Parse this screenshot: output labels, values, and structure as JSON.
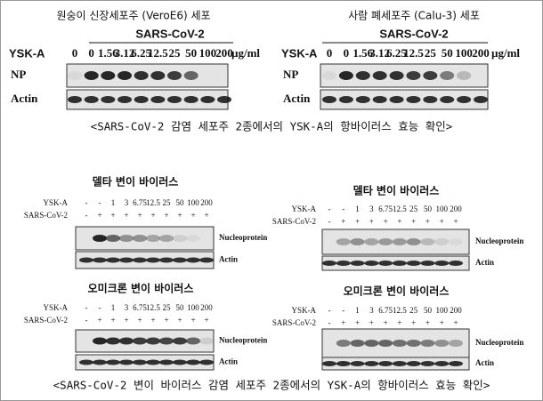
{
  "top_panels": [
    {
      "title": "원숭이 신장세포주 (VeroE6) 세포",
      "virus": "SARS-CoV-2",
      "treatment_label": "YSK-A",
      "doses": [
        "0",
        "0",
        "1.56",
        "3.12",
        "6.25",
        "12.5",
        "25",
        "50",
        "100",
        "200"
      ],
      "unit": "µg/ml",
      "blots": [
        "NP",
        "Actin"
      ]
    },
    {
      "title": "사람 폐세포주 (Calu-3) 세포",
      "virus": "SARS-CoV-2",
      "treatment_label": "YSK-A",
      "doses": [
        "0",
        "0",
        "1.56",
        "3.12",
        "6.25",
        "12.5",
        "25",
        "50",
        "100",
        "200"
      ],
      "unit": "µg/ml",
      "blots": [
        "NP",
        "Actin"
      ]
    }
  ],
  "top_caption": "<SARS-CoV-2 감염 세포주 2종에서의 YSK-A의 항바이러스 효능 확인>",
  "bottom_panels": [
    {
      "title": "델타 변이 바이러스",
      "rows": [
        {
          "label": "YSK-A",
          "lanes": [
            "-",
            "-",
            "1",
            "3",
            "6.75",
            "12.5",
            "25",
            "50",
            "100",
            "200"
          ]
        },
        {
          "label": "SARS-CoV-2",
          "lanes": [
            "-",
            "+",
            "+",
            "+",
            "+",
            "+",
            "+",
            "+",
            "+",
            "+"
          ]
        }
      ],
      "blots": [
        "Nucleoprotein",
        "Actin"
      ]
    },
    {
      "title": "오미크론 변이 바이러스",
      "rows": [
        {
          "label": "YSK-A",
          "lanes": [
            "-",
            "-",
            "1",
            "3",
            "6.75",
            "12.5",
            "25",
            "50",
            "100",
            "200"
          ]
        },
        {
          "label": "SARS-CoV-2",
          "lanes": [
            "-",
            "+",
            "+",
            "+",
            "+",
            "+",
            "+",
            "+",
            "+",
            "+"
          ]
        }
      ],
      "blots": [
        "Nucleoprotein",
        "Actin"
      ]
    },
    {
      "title": "델타 변이 바이러스",
      "rows": [
        {
          "label": "YSK-A",
          "lanes": [
            "-",
            "-",
            "1",
            "3",
            "6.75",
            "12.5",
            "25",
            "50",
            "100",
            "200"
          ]
        },
        {
          "label": "SARS-CoV-2",
          "lanes": [
            "-",
            "+",
            "+",
            "+",
            "+",
            "+",
            "+",
            "+",
            "+",
            "+"
          ]
        }
      ],
      "blots": [
        "Nucleoprotein",
        "Actin"
      ]
    },
    {
      "title": "오미크론 변이 바이러스",
      "rows": [
        {
          "label": "YSK-A",
          "lanes": [
            "-",
            "-",
            "1",
            "3",
            "6.75",
            "12.5",
            "25",
            "50",
            "100",
            "200"
          ]
        },
        {
          "label": "SARS-CoV-2",
          "lanes": [
            "-",
            "+",
            "+",
            "+",
            "+",
            "+",
            "+",
            "+",
            "+",
            "+"
          ]
        }
      ],
      "blots": [
        "Nucleoprotein",
        "Actin"
      ]
    }
  ],
  "bottom_caption": "<SARS-CoV-2 변이 바이러스 감염 세포주 2종에서의 YSK-A의 항바이러스 효능 확인>"
}
